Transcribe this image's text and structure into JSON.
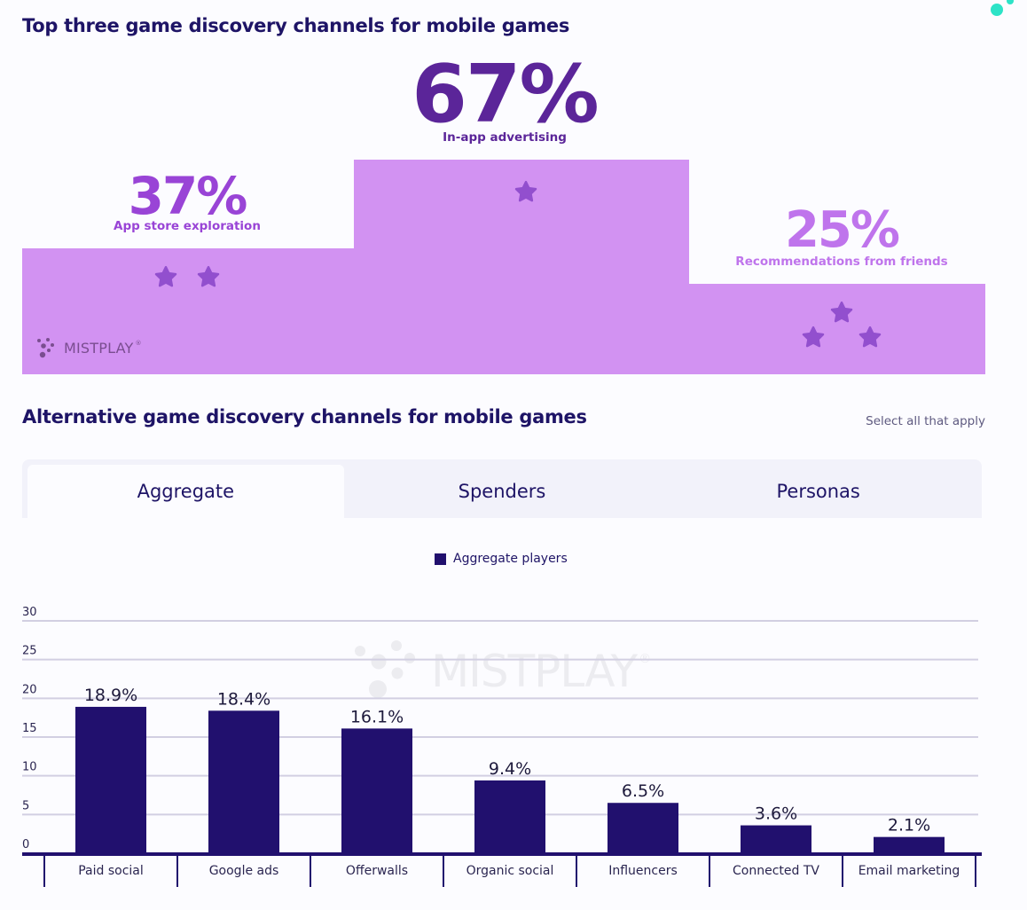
{
  "section1": {
    "title": "Top three game discovery channels for mobile games",
    "podium": [
      {
        "position": "left",
        "value": "37%",
        "label": "App store exploration",
        "stars": 2
      },
      {
        "position": "center",
        "value": "67%",
        "label": "In-app advertising",
        "stars": 1
      },
      {
        "position": "right",
        "value": "25%",
        "label": "Recommendations from friends",
        "stars": 3
      }
    ],
    "logo": {
      "text": "MISTPLAY",
      "reg": "®"
    }
  },
  "section2": {
    "title": "Alternative game discovery channels for mobile games",
    "hint": "Select all that apply",
    "tabs": [
      {
        "label": "Aggregate",
        "active": true
      },
      {
        "label": "Spenders",
        "active": false
      },
      {
        "label": "Personas",
        "active": false
      }
    ],
    "watermark": {
      "text": "MISTPLAY",
      "reg": "®"
    }
  },
  "colors": {
    "bar": "#21106e",
    "podium": "#d292f2",
    "star": "#924fce",
    "grid": "#d2cfe2",
    "accent_dot": "#2de3c7"
  },
  "chart_data": {
    "type": "bar",
    "title": "Alternative game discovery channels for mobile games",
    "xlabel": "",
    "ylabel": "",
    "ylim": [
      0,
      30
    ],
    "yticks": [
      0,
      5,
      10,
      15,
      20,
      25,
      30
    ],
    "grid": true,
    "legend_position": "top-center",
    "categories": [
      "Paid social",
      "Google ads",
      "Offerwalls",
      "Organic social",
      "Influencers",
      "Connected TV",
      "Email marketing"
    ],
    "series": [
      {
        "name": "Aggregate players",
        "values": [
          18.9,
          18.4,
          16.1,
          9.4,
          6.5,
          3.6,
          2.1
        ],
        "labels": [
          "18.9%",
          "18.4%",
          "16.1%",
          "9.4%",
          "6.5%",
          "3.6%",
          "2.1%"
        ]
      }
    ]
  }
}
